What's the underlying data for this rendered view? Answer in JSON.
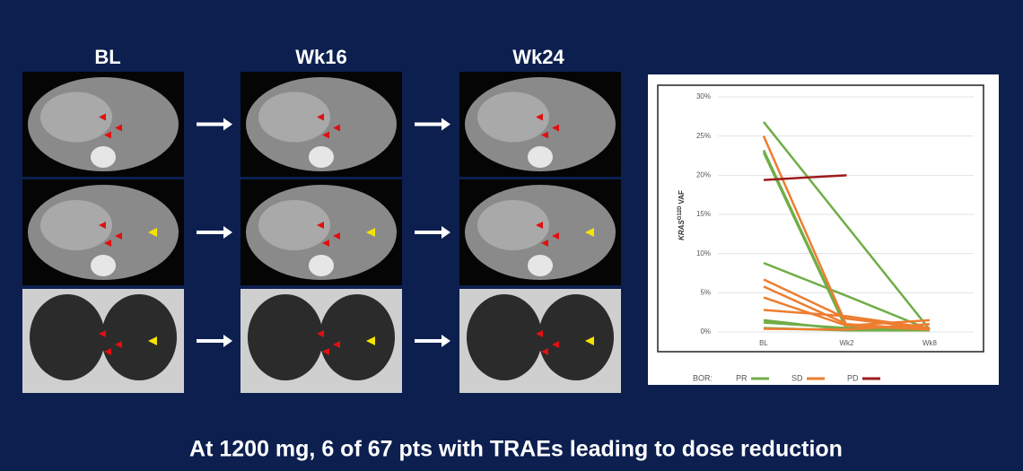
{
  "slide": {
    "columns": [
      "BL",
      "Wk16",
      "Wk24"
    ],
    "caption": "At 1200 mg, 6 of 67 pts with TRAEs leading to dose reduction"
  },
  "chart_data": {
    "type": "line",
    "categories": [
      "BL",
      "Wk2",
      "Wk8"
    ],
    "ylabel": [
      "KRAS",
      "G12D",
      "VAF"
    ],
    "ylim": [
      0,
      30
    ],
    "yticks": [
      {
        "value": 0,
        "label": "0%"
      },
      {
        "value": 5,
        "label": "5%"
      },
      {
        "value": 10,
        "label": "10%"
      },
      {
        "value": 15,
        "label": "15%"
      },
      {
        "value": 20,
        "label": "20%"
      },
      {
        "value": 25,
        "label": "25%"
      },
      {
        "value": 30,
        "label": "30%"
      }
    ],
    "grid": true,
    "legend_title": "BOR:",
    "groups": [
      {
        "name": "PR",
        "color": "#70ad47"
      },
      {
        "name": "SD",
        "color": "#ed7d31"
      },
      {
        "name": "PD",
        "color": "#9e1b1b"
      }
    ],
    "series": [
      {
        "group": 0,
        "x": [
          "BL",
          "Wk8"
        ],
        "values": [
          26.8,
          0.3
        ]
      },
      {
        "group": 0,
        "x": [
          "BL",
          "Wk2",
          "Wk8"
        ],
        "values": [
          23.2,
          0.5,
          0.3
        ]
      },
      {
        "group": 0,
        "x": [
          "BL",
          "Wk2",
          "Wk8"
        ],
        "values": [
          22.9,
          0.3,
          0.2
        ]
      },
      {
        "group": 0,
        "x": [
          "BL",
          "Wk2",
          "Wk8"
        ],
        "values": [
          8.8,
          4.6,
          0.3
        ]
      },
      {
        "group": 0,
        "x": [
          "BL",
          "Wk2",
          "Wk8"
        ],
        "values": [
          1.5,
          0.3,
          0.2
        ]
      },
      {
        "group": 0,
        "x": [
          "BL",
          "Wk2",
          "Wk8"
        ],
        "values": [
          1.2,
          0.5,
          0.3
        ]
      },
      {
        "group": 0,
        "x": [
          "BL",
          "Wk2",
          "Wk8"
        ],
        "values": [
          0.5,
          0.2,
          0.2
        ]
      },
      {
        "group": 1,
        "x": [
          "BL",
          "Wk2",
          "Wk8"
        ],
        "values": [
          25,
          0.8,
          0.3
        ]
      },
      {
        "group": 1,
        "x": [
          "BL",
          "Wk2",
          "Wk8"
        ],
        "values": [
          6.7,
          1.7,
          0.4
        ]
      },
      {
        "group": 1,
        "x": [
          "BL",
          "Wk2",
          "Wk8"
        ],
        "values": [
          5.8,
          1.0,
          0.3
        ]
      },
      {
        "group": 1,
        "x": [
          "BL",
          "Wk2",
          "Wk8"
        ],
        "values": [
          4.4,
          0.8,
          1.5
        ]
      },
      {
        "group": 1,
        "x": [
          "BL",
          "Wk2",
          "Wk8"
        ],
        "values": [
          2.8,
          2.0,
          0.5
        ]
      },
      {
        "group": 1,
        "x": [
          "BL",
          "Wk2",
          "Wk8"
        ],
        "values": [
          0.4,
          0.3,
          1.0
        ]
      },
      {
        "group": 2,
        "x": [
          "BL",
          "Wk2"
        ],
        "values": [
          19.4,
          20.0
        ]
      }
    ]
  }
}
